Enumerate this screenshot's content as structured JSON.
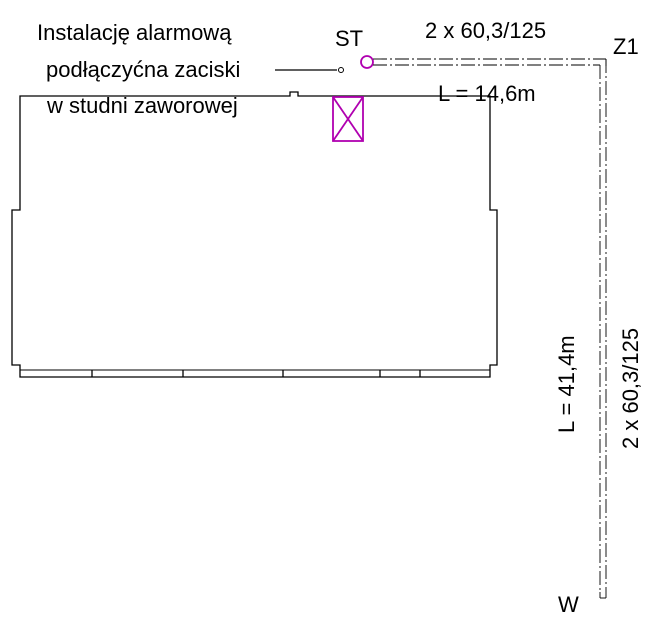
{
  "labels": {
    "note_line1": "Instalację alarmową",
    "note_line2": "podłączyćna zaciski",
    "note_line3": "w studni zaworowej",
    "st": "ST",
    "z1": "Z1",
    "w": "W",
    "pipe_top_spec": "2 x 60,3/125",
    "pipe_top_length": "L = 14,6m",
    "pipe_vertical_spec": "2 x 60,3/125",
    "pipe_vertical_length": "L = 41,4m"
  },
  "colors": {
    "line": "#000000",
    "accent_magenta": "#b000b0",
    "background": "#ffffff"
  },
  "symbols": {
    "connection_point": "circle-icon",
    "valve_chamber": "crossed-box-icon",
    "leader_terminal": "small-circle-icon"
  }
}
